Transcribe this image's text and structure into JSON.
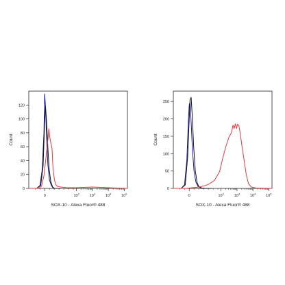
{
  "chart_data": [
    {
      "type": "line",
      "title": "",
      "xlabel": "SOX-10 - Alexa Fluor® 488",
      "ylabel": "Count",
      "x_scale": "biexponential",
      "x_ticks": [
        "0",
        "10^2",
        "10^3",
        "10^4",
        "10^5"
      ],
      "y_ticks": [
        "0",
        "20",
        "40",
        "60",
        "80",
        "100",
        "120"
      ],
      "ylim": [
        0,
        140
      ],
      "grid": false,
      "legend": "none",
      "series": [
        {
          "color": "#1a1aa8",
          "points": [
            [
              -1.0,
              0
            ],
            [
              -0.5,
              0
            ],
            [
              -0.3,
              4
            ],
            [
              -0.15,
              28
            ],
            [
              -0.05,
              80
            ],
            [
              0,
              136
            ],
            [
              0.05,
              118
            ],
            [
              0.12,
              72
            ],
            [
              0.2,
              34
            ],
            [
              0.3,
              12
            ],
            [
              0.42,
              4
            ],
            [
              0.55,
              0
            ],
            [
              1.0,
              0
            ]
          ]
        },
        {
          "color": "#111111",
          "points": [
            [
              -1.0,
              0
            ],
            [
              -0.5,
              0
            ],
            [
              -0.25,
              4
            ],
            [
              -0.1,
              32
            ],
            [
              0,
              96
            ],
            [
              0.05,
              118
            ],
            [
              0.12,
              96
            ],
            [
              0.2,
              58
            ],
            [
              0.28,
              28
            ],
            [
              0.38,
              10
            ],
            [
              0.5,
              2
            ],
            [
              0.62,
              0
            ],
            [
              1.0,
              0
            ]
          ]
        },
        {
          "color": "#e0393d",
          "points": [
            [
              -1.0,
              0
            ],
            [
              -0.4,
              0
            ],
            [
              -0.2,
              3
            ],
            [
              -0.05,
              18
            ],
            [
              0.1,
              48
            ],
            [
              0.2,
              70
            ],
            [
              0.26,
              86
            ],
            [
              0.33,
              72
            ],
            [
              0.38,
              66
            ],
            [
              0.46,
              58
            ],
            [
              0.52,
              30
            ],
            [
              0.6,
              14
            ],
            [
              0.68,
              6
            ],
            [
              0.8,
              3
            ],
            [
              1.0,
              2
            ],
            [
              1.4,
              1
            ],
            [
              2,
              1
            ],
            [
              3,
              2
            ],
            [
              4,
              1
            ],
            [
              5.2,
              0
            ]
          ]
        }
      ]
    },
    {
      "type": "line",
      "title": "",
      "xlabel": "SOX-10 - Alexa Fluor® 488",
      "ylabel": "Count",
      "x_scale": "biexponential",
      "x_ticks": [
        "0",
        "10^2",
        "10^3",
        "10^4",
        "10^5"
      ],
      "y_ticks": [
        "0",
        "50",
        "100",
        "150",
        "200",
        "250"
      ],
      "ylim": [
        0,
        280
      ],
      "grid": false,
      "legend": "none",
      "series": [
        {
          "color": "#1a1aa8",
          "points": [
            [
              -1.0,
              0
            ],
            [
              -0.5,
              0
            ],
            [
              -0.3,
              10
            ],
            [
              -0.15,
              80
            ],
            [
              -0.05,
              200
            ],
            [
              0,
              240
            ],
            [
              0.05,
              248
            ],
            [
              0.12,
              190
            ],
            [
              0.2,
              110
            ],
            [
              0.3,
              50
            ],
            [
              0.42,
              18
            ],
            [
              0.55,
              6
            ],
            [
              0.7,
              2
            ],
            [
              0.9,
              0
            ],
            [
              1.4,
              0
            ]
          ]
        },
        {
          "color": "#111111",
          "points": [
            [
              -1.0,
              0
            ],
            [
              -0.5,
              0
            ],
            [
              -0.25,
              10
            ],
            [
              -0.1,
              90
            ],
            [
              0,
              200
            ],
            [
              0.05,
              255
            ],
            [
              0.12,
              262
            ],
            [
              0.2,
              200
            ],
            [
              0.28,
              120
            ],
            [
              0.38,
              50
            ],
            [
              0.5,
              16
            ],
            [
              0.62,
              4
            ],
            [
              0.8,
              1
            ],
            [
              1.0,
              0
            ],
            [
              1.4,
              0
            ]
          ]
        },
        {
          "color": "#e0393d",
          "points": [
            [
              -1.0,
              0
            ],
            [
              -0.2,
              0
            ],
            [
              0.2,
              2
            ],
            [
              0.6,
              4
            ],
            [
              1.0,
              8
            ],
            [
              1.3,
              14
            ],
            [
              1.6,
              24
            ],
            [
              1.9,
              48
            ],
            [
              2.1,
              86
            ],
            [
              2.3,
              120
            ],
            [
              2.5,
              148
            ],
            [
              2.65,
              160
            ],
            [
              2.75,
              182
            ],
            [
              2.82,
              172
            ],
            [
              2.9,
              186
            ],
            [
              2.97,
              172
            ],
            [
              3.04,
              185
            ],
            [
              3.12,
              180
            ],
            [
              3.2,
              160
            ],
            [
              3.32,
              120
            ],
            [
              3.45,
              80
            ],
            [
              3.58,
              40
            ],
            [
              3.72,
              14
            ],
            [
              3.9,
              4
            ],
            [
              4.2,
              1
            ],
            [
              5.2,
              0
            ]
          ]
        }
      ]
    }
  ]
}
